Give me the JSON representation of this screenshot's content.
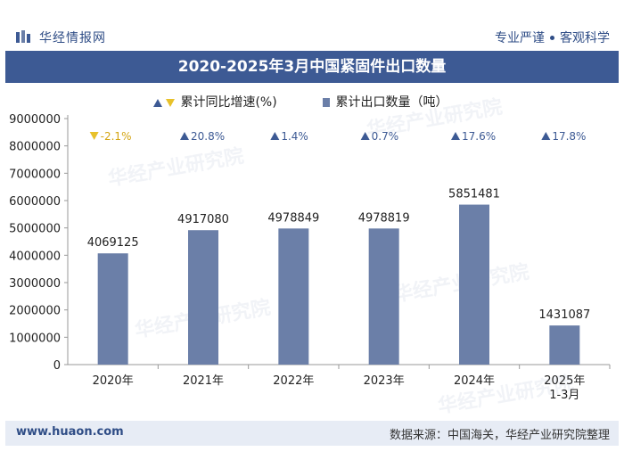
{
  "header": {
    "brand": "华经情报网",
    "slogan_left": "专业严谨",
    "slogan_right": "客观科学"
  },
  "title": "2020-2025年3月中国紧固件出口数量",
  "legend": {
    "growth_label": "累计同比增速(%)",
    "volume_label": "累计出口数量（吨）"
  },
  "colors": {
    "bar": "#6b7fa8",
    "up": "#3d5a94",
    "down": "#e8c12a",
    "title_band": "#3d5a94"
  },
  "chart_data": {
    "type": "bar",
    "categories": [
      "2020年",
      "2021年",
      "2022年",
      "2023年",
      "2024年",
      "2025年\n1-3月"
    ],
    "category_lines": [
      [
        "2020年"
      ],
      [
        "2021年"
      ],
      [
        "2022年"
      ],
      [
        "2023年"
      ],
      [
        "2024年"
      ],
      [
        "2025年",
        "1-3月"
      ]
    ],
    "series": [
      {
        "name": "累计出口数量（吨）",
        "values": [
          4069125,
          4917080,
          4978849,
          4978819,
          5851481,
          1431087
        ]
      },
      {
        "name": "累计同比增速(%)",
        "values": [
          -2.1,
          20.8,
          1.4,
          0.7,
          17.6,
          17.8
        ]
      }
    ],
    "value_labels": [
      "4069125",
      "4917080",
      "4978849",
      "4978819",
      "5851481",
      "1431087"
    ],
    "growth_labels": [
      "-2.1%",
      "20.8%",
      "1.4%",
      "0.7%",
      "17.6%",
      "17.8%"
    ],
    "yticks": [
      "0",
      "1000000",
      "2000000",
      "3000000",
      "4000000",
      "5000000",
      "6000000",
      "7000000",
      "8000000",
      "9000000"
    ],
    "ylim": [
      0,
      9000000
    ],
    "grid": false
  },
  "footer": {
    "url": "www.huaon.com",
    "source": "数据来源：中国海关，华经产业研究院整理"
  },
  "watermark": "华经产业研究院"
}
